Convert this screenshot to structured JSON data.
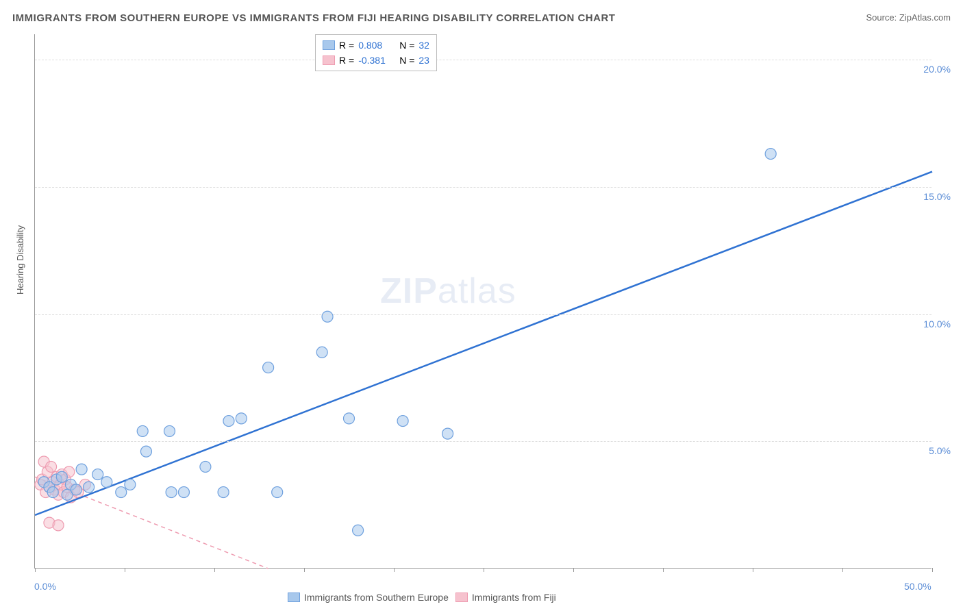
{
  "title": "IMMIGRANTS FROM SOUTHERN EUROPE VS IMMIGRANTS FROM FIJI HEARING DISABILITY CORRELATION CHART",
  "source": "Source: ZipAtlas.com",
  "watermark": "ZIPatlas",
  "chart": {
    "type": "scatter",
    "ylabel": "Hearing Disability",
    "background_color": "#ffffff",
    "grid_color": "#dddddd",
    "axis_color": "#999999",
    "tick_label_color": "#5b8dd6",
    "label_fontsize": 13,
    "tick_fontsize": 14,
    "xlim": [
      0,
      50
    ],
    "ylim": [
      0,
      21
    ],
    "x_tick_positions": [
      0,
      5,
      10,
      15,
      20,
      25,
      30,
      35,
      40,
      45,
      50
    ],
    "x_tick_labels_shown": {
      "0": "0.0%",
      "50": "50.0%"
    },
    "y_gridlines": [
      5,
      10,
      15,
      20
    ],
    "y_tick_labels": {
      "5": "5.0%",
      "10": "10.0%",
      "15": "15.0%",
      "20": "20.0%"
    },
    "marker_radius": 8,
    "marker_opacity": 0.55,
    "series": [
      {
        "name": "Immigrants from Southern Europe",
        "color_fill": "#a8c8ec",
        "color_stroke": "#6ea0de",
        "r_value": "0.808",
        "n_value": "32",
        "trendline": {
          "x1": 0,
          "y1": 2.1,
          "x2": 50,
          "y2": 15.6,
          "color": "#2f72d2",
          "width": 2.5,
          "dash": "none"
        },
        "points": [
          [
            0.5,
            3.4
          ],
          [
            0.8,
            3.2
          ],
          [
            1.0,
            3.0
          ],
          [
            1.2,
            3.5
          ],
          [
            1.5,
            3.6
          ],
          [
            1.8,
            2.9
          ],
          [
            2.0,
            3.3
          ],
          [
            2.3,
            3.1
          ],
          [
            2.6,
            3.9
          ],
          [
            3.0,
            3.2
          ],
          [
            3.5,
            3.7
          ],
          [
            4.0,
            3.4
          ],
          [
            4.8,
            3.0
          ],
          [
            5.3,
            3.3
          ],
          [
            6.0,
            5.4
          ],
          [
            6.2,
            4.6
          ],
          [
            7.5,
            5.4
          ],
          [
            7.6,
            3.0
          ],
          [
            8.3,
            3.0
          ],
          [
            9.5,
            4.0
          ],
          [
            10.5,
            3.0
          ],
          [
            10.8,
            5.8
          ],
          [
            11.5,
            5.9
          ],
          [
            13.0,
            7.9
          ],
          [
            13.5,
            3.0
          ],
          [
            16.0,
            8.5
          ],
          [
            16.3,
            9.9
          ],
          [
            17.5,
            5.9
          ],
          [
            18.0,
            1.5
          ],
          [
            20.5,
            5.8
          ],
          [
            23.0,
            5.3
          ],
          [
            41.0,
            16.3
          ]
        ]
      },
      {
        "name": "Immigrants from Fiji",
        "color_fill": "#f6c2ce",
        "color_stroke": "#ee9bb0",
        "r_value": "-0.381",
        "n_value": "23",
        "trendline": {
          "x1": 0,
          "y1": 3.6,
          "x2": 13,
          "y2": 0,
          "color": "#ee9bb0",
          "width": 1.5,
          "dash": "6,5"
        },
        "points": [
          [
            0.3,
            3.3
          ],
          [
            0.4,
            3.5
          ],
          [
            0.5,
            4.2
          ],
          [
            0.6,
            3.0
          ],
          [
            0.7,
            3.8
          ],
          [
            0.8,
            3.2
          ],
          [
            0.9,
            4.0
          ],
          [
            1.0,
            3.4
          ],
          [
            1.1,
            3.1
          ],
          [
            1.2,
            3.6
          ],
          [
            1.3,
            2.9
          ],
          [
            1.4,
            3.3
          ],
          [
            1.5,
            3.7
          ],
          [
            1.6,
            3.0
          ],
          [
            1.7,
            3.5
          ],
          [
            1.8,
            3.2
          ],
          [
            1.9,
            3.8
          ],
          [
            2.0,
            2.8
          ],
          [
            2.2,
            3.1
          ],
          [
            2.4,
            3.0
          ],
          [
            0.8,
            1.8
          ],
          [
            1.3,
            1.7
          ],
          [
            2.8,
            3.3
          ]
        ]
      }
    ]
  },
  "legend_top": {
    "r_label": "R  =",
    "n_label": "N  ="
  },
  "legend_bottom": {
    "items": [
      "Immigrants from Southern Europe",
      "Immigrants from Fiji"
    ]
  }
}
